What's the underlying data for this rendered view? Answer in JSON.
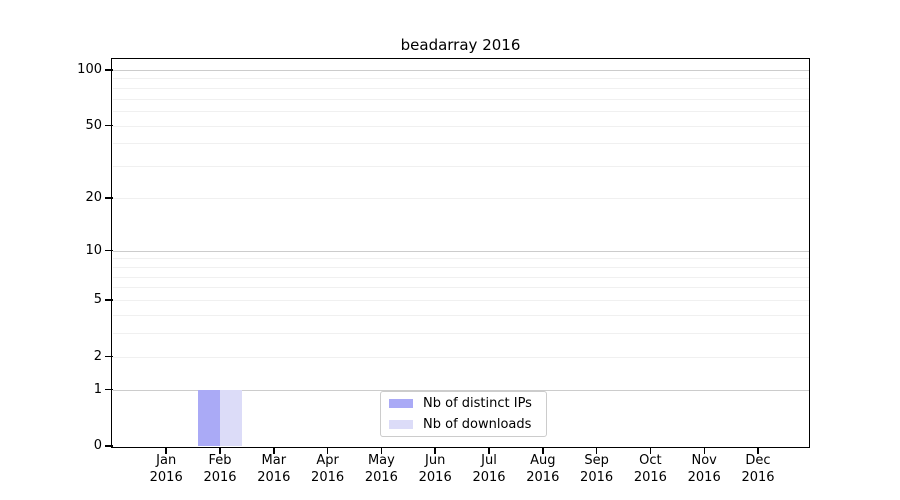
{
  "chart_data": {
    "type": "bar",
    "title": "beadarray 2016",
    "categories": [
      "Jan",
      "Feb",
      "Mar",
      "Apr",
      "May",
      "Jun",
      "Jul",
      "Aug",
      "Sep",
      "Oct",
      "Nov",
      "Dec"
    ],
    "year_label": "2016",
    "series": [
      {
        "name": "Nb of distinct IPs",
        "color": "#aaaaf6",
        "values": [
          0,
          1,
          0,
          0,
          0,
          0,
          0,
          0,
          0,
          0,
          0,
          0
        ]
      },
      {
        "name": "Nb of downloads",
        "color": "#dcdcf8",
        "values": [
          0,
          1,
          0,
          0,
          0,
          0,
          0,
          0,
          0,
          0,
          0,
          0
        ]
      }
    ],
    "yscale": "log1p",
    "ytick_labels": [
      0,
      1,
      2,
      5,
      10,
      20,
      50,
      100
    ],
    "major_gridlines": [
      1,
      10,
      100
    ],
    "minor_gridlines": [
      2,
      3,
      4,
      5,
      6,
      7,
      8,
      9,
      20,
      30,
      40,
      50,
      60,
      70,
      80,
      90
    ],
    "ylim": [
      0,
      114
    ],
    "xlabel": "",
    "ylabel": "",
    "grid": true,
    "legend_position": "bottom-center",
    "colors": {
      "major_grid": "#cccccc",
      "minor_grid": "#f0f0f0",
      "axis": "#000000",
      "text": "#000000",
      "background": "#ffffff",
      "legend_border": "#cccccc"
    }
  }
}
